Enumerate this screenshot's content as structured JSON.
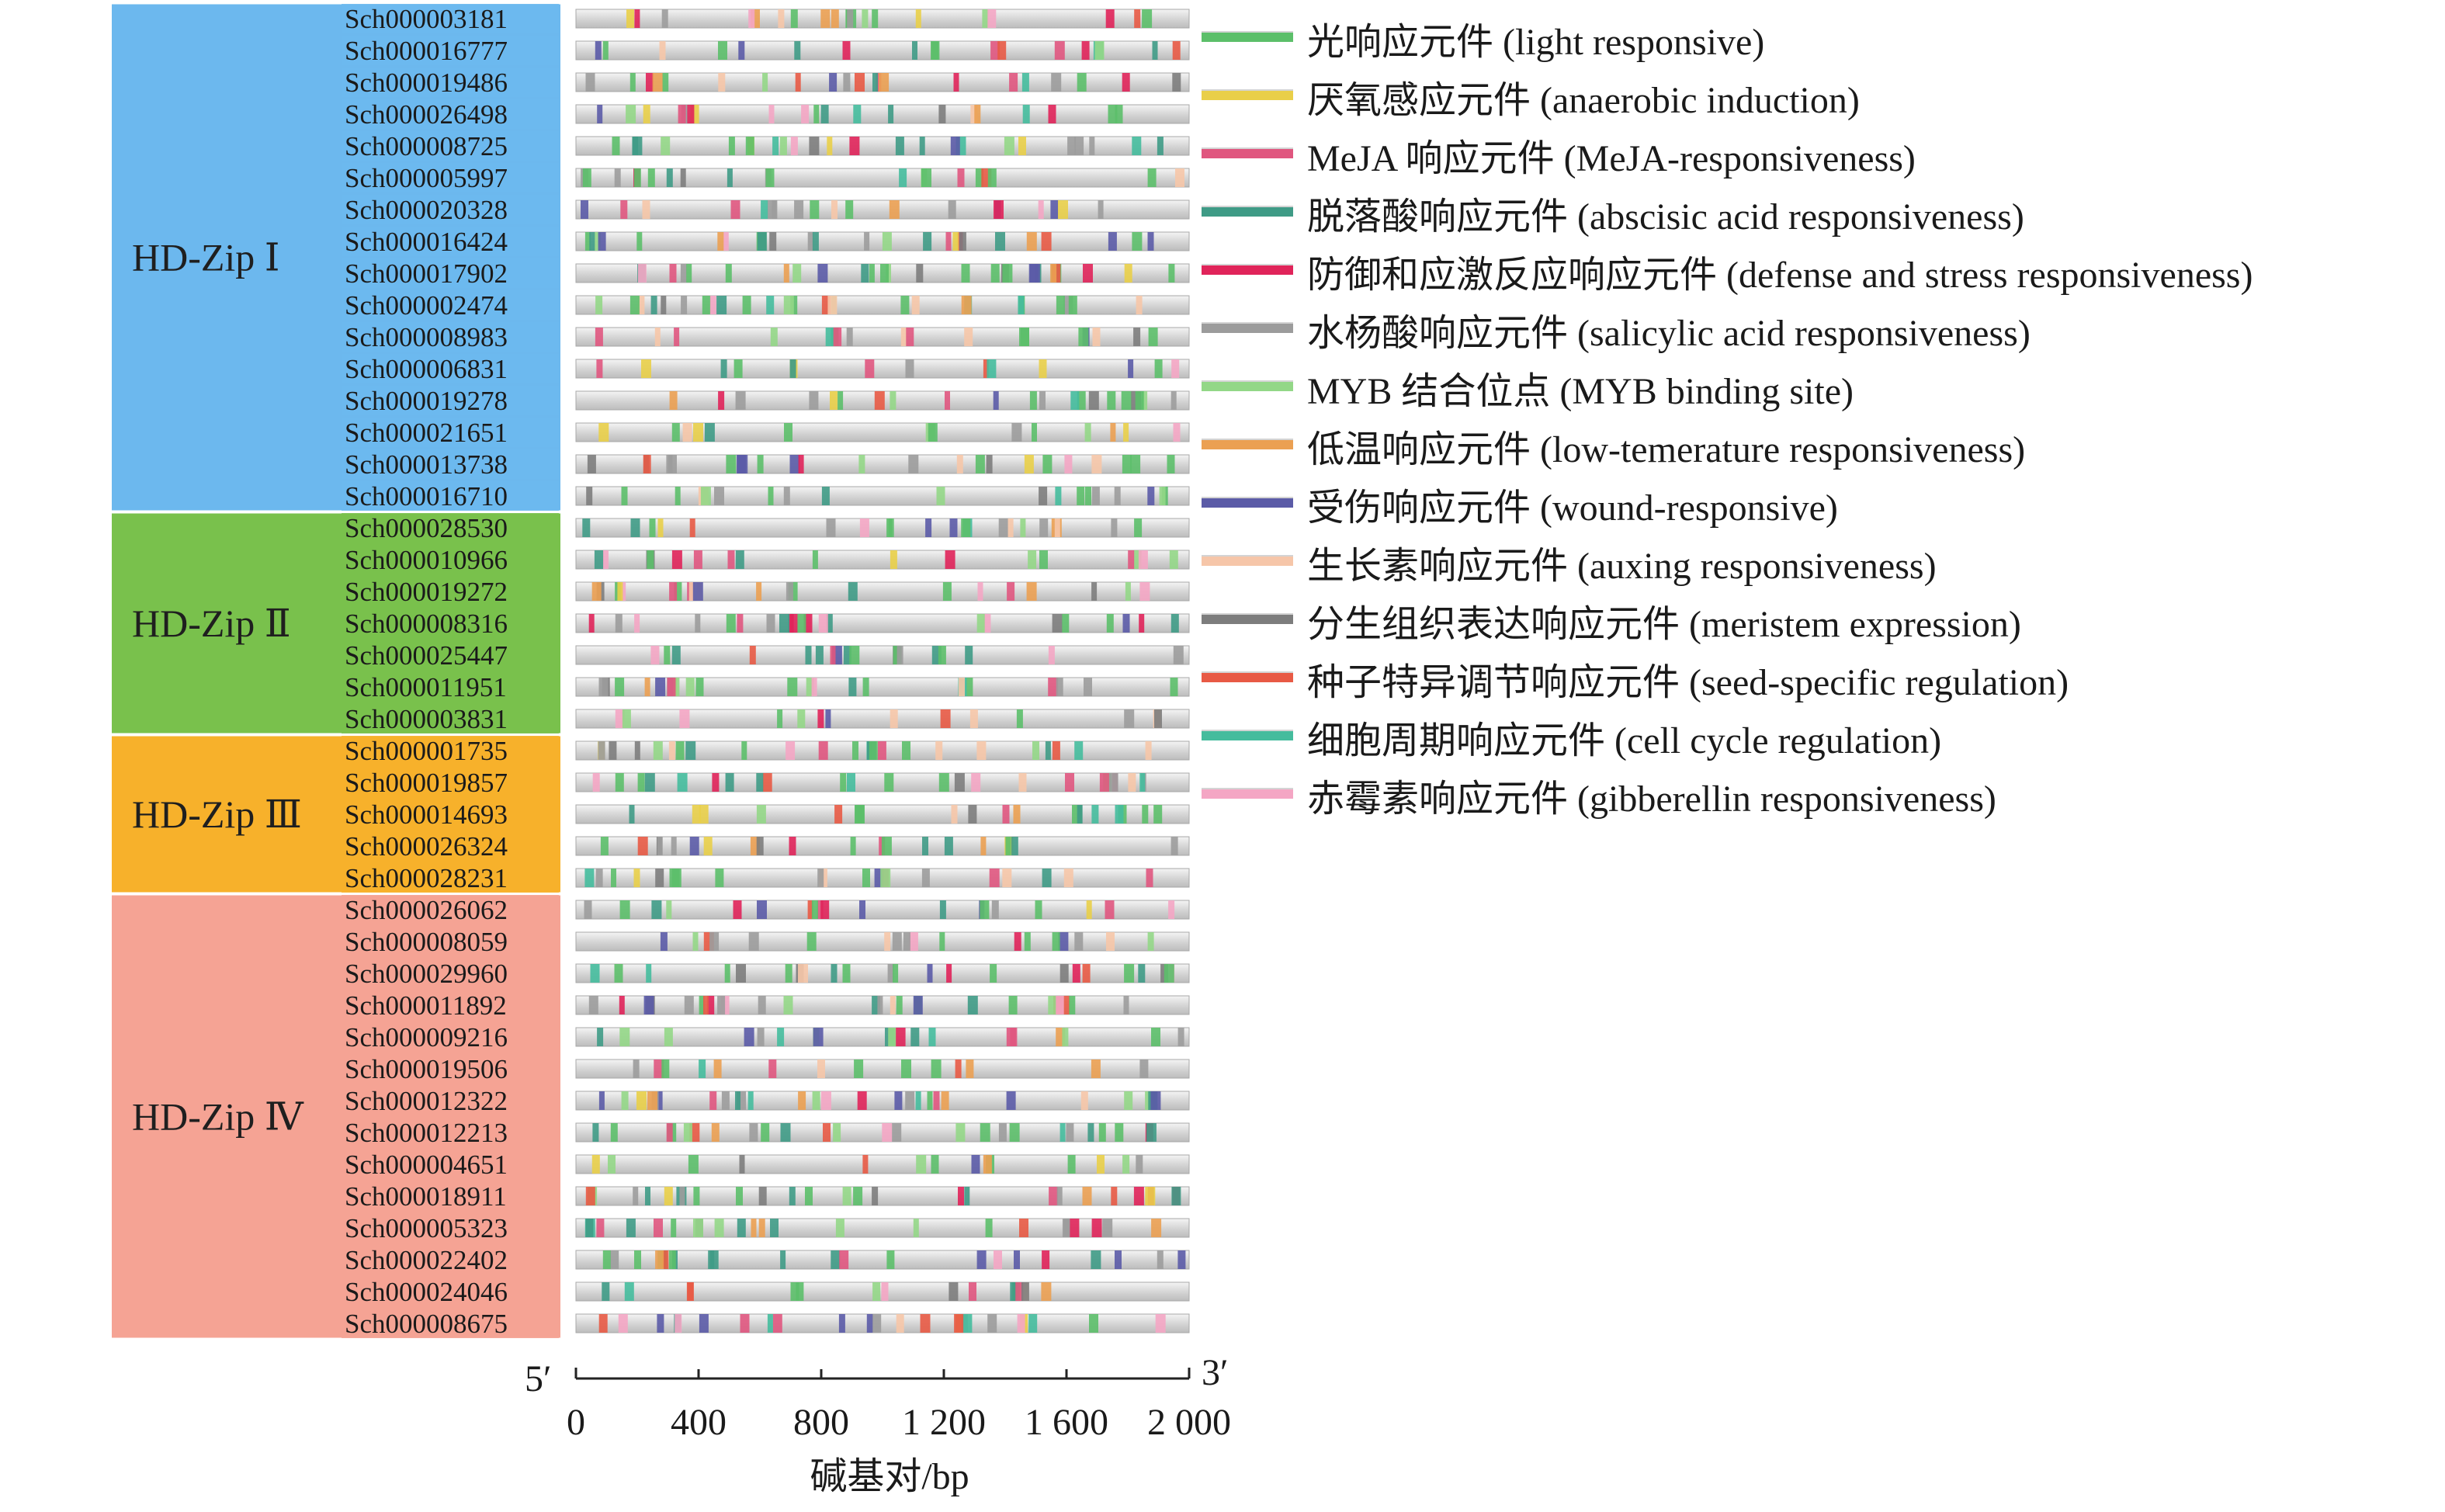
{
  "figure": {
    "groups": [
      {
        "name": "HD-Zip Ⅰ",
        "color": "#6cb8ee",
        "genes": [
          "Sch000003181",
          "Sch000016777",
          "Sch000019486",
          "Sch000026498",
          "Sch000008725",
          "Sch000005997",
          "Sch000020328",
          "Sch000016424",
          "Sch000017902",
          "Sch000002474",
          "Sch000008983",
          "Sch000006831",
          "Sch000019278",
          "Sch000021651",
          "Sch000013738",
          "Sch000016710"
        ]
      },
      {
        "name": "HD-Zip Ⅱ",
        "color": "#79c14c",
        "genes": [
          "Sch000028530",
          "Sch000010966",
          "Sch000019272",
          "Sch000008316",
          "Sch000025447",
          "Sch000011951",
          "Sch000003831"
        ]
      },
      {
        "name": "HD-Zip Ⅲ",
        "color": "#f7b12b",
        "genes": [
          "Sch000001735",
          "Sch000019857",
          "Sch000014693",
          "Sch000026324",
          "Sch000028231"
        ]
      },
      {
        "name": "HD-Zip Ⅳ",
        "color": "#f5a394",
        "genes": [
          "Sch000026062",
          "Sch000008059",
          "Sch000029960",
          "Sch000011892",
          "Sch000009216",
          "Sch000019506",
          "Sch000012322",
          "Sch000012213",
          "Sch000004651",
          "Sch000018911",
          "Sch000005323",
          "Sch000022402",
          "Sch000024046",
          "Sch000008675"
        ]
      }
    ],
    "legend": [
      {
        "label": "光响应元件 (light responsive)",
        "color": "#5cbf6a"
      },
      {
        "label": "厌氧感应元件 (anaerobic induction)",
        "color": "#e9cf49"
      },
      {
        "label": "MeJA 响应元件 (MeJA-responsiveness)",
        "color": "#e0567f"
      },
      {
        "label": "脱落酸响应元件 (abscisic acid responsiveness)",
        "color": "#3f9b86"
      },
      {
        "label": "防御和应激反应响应元件 (defense and stress responsiveness)",
        "color": "#e0245a"
      },
      {
        "label": "水杨酸响应元件 (salicylic acid responsiveness)",
        "color": "#9c9c9c"
      },
      {
        "label": "MYB 结合位点 (MYB binding site)",
        "color": "#93d787"
      },
      {
        "label": "低温响应元件 (low-temerature responsiveness)",
        "color": "#eba052"
      },
      {
        "label": "受伤响应元件 (wound-responsive)",
        "color": "#5b5ba7"
      },
      {
        "label": "生长素响应元件 (auxing responsiveness)",
        "color": "#f6c6a9"
      },
      {
        "label": "分生组织表达响应元件 (meristem expression)",
        "color": "#7d7d7d"
      },
      {
        "label": "种子特异调节响应元件 (seed-specific regulation)",
        "color": "#e85a45"
      },
      {
        "label": "细胞周期响应元件 (cell cycle regulation)",
        "color": "#45bc9d"
      },
      {
        "label": "赤霉素响应元件 (gibberellin responsiveness)",
        "color": "#f4a6c4"
      }
    ],
    "axis": {
      "five_prime": "5′",
      "three_prime": "3′",
      "ticks": [
        "0",
        "400",
        "800",
        "1 200",
        "1 600",
        "2 000"
      ],
      "tick_values": [
        0,
        400,
        800,
        1200,
        1600,
        2000
      ],
      "max": 2000,
      "xlabel": "碱基对/bp"
    }
  }
}
